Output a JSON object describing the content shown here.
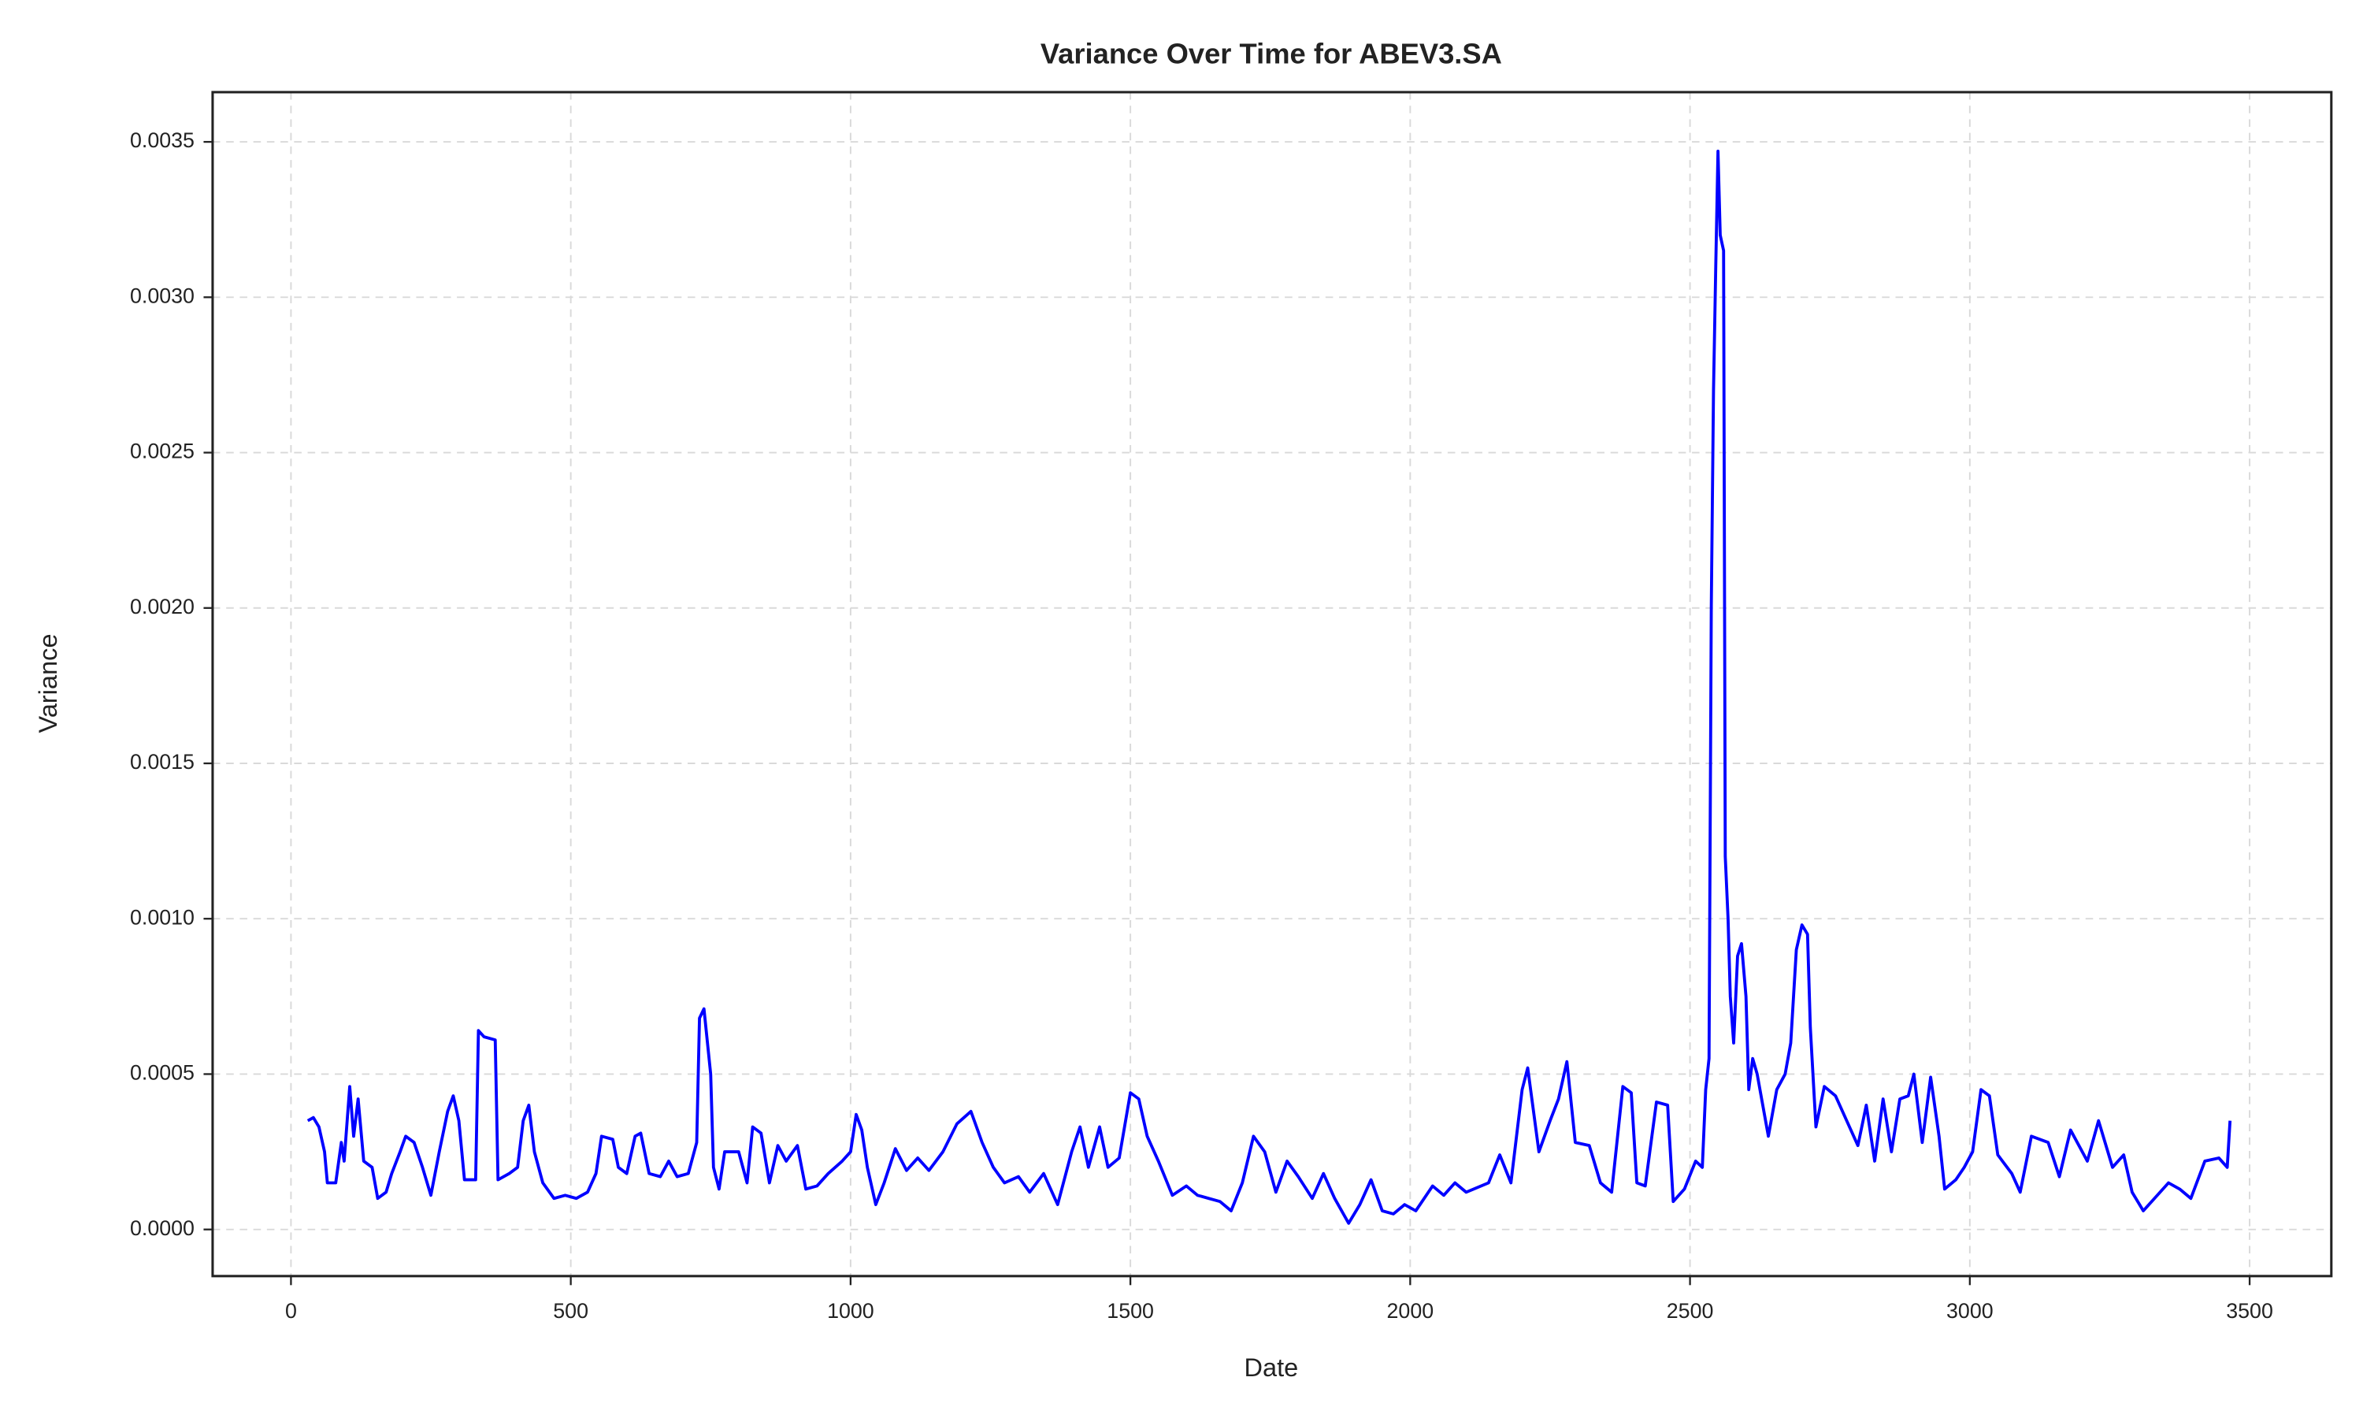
{
  "chart_data": {
    "type": "line",
    "title": "Variance Over Time for ABEV3.SA",
    "x_label": "Date",
    "y_label": "Variance",
    "xlim": [
      -140,
      3646
    ],
    "ylim": [
      -0.00015,
      0.00366
    ],
    "xticks": [
      0,
      500,
      1000,
      1500,
      2000,
      2500,
      3000,
      3500
    ],
    "yticks": [
      {
        "value": 0,
        "label": "0.0000"
      },
      0.0005,
      {
        "value": 0.001,
        "label": "0.0010"
      },
      0.0015,
      {
        "value": 0.002,
        "label": "0.0020"
      },
      0.0025,
      {
        "value": 0.003,
        "label": "0.0030"
      },
      0.0035
    ],
    "grid": true,
    "series": [
      {
        "color": "#0000ff",
        "x": [
          30,
          40,
          50,
          60,
          65,
          80,
          90,
          95,
          105,
          112,
          120,
          130,
          145,
          155,
          170,
          180,
          195,
          205,
          220,
          235,
          250,
          265,
          280,
          290,
          300,
          310,
          330,
          335,
          345,
          365,
          370,
          390,
          405,
          415,
          425,
          435,
          450,
          470,
          490,
          510,
          530,
          545,
          555,
          575,
          585,
          600,
          615,
          625,
          640,
          660,
          675,
          690,
          710,
          725,
          730,
          738,
          750,
          755,
          765,
          775,
          800,
          815,
          825,
          840,
          855,
          870,
          885,
          905,
          920,
          940,
          960,
          985,
          1000,
          1010,
          1020,
          1030,
          1045,
          1060,
          1080,
          1100,
          1120,
          1140,
          1165,
          1190,
          1215,
          1235,
          1255,
          1275,
          1300,
          1320,
          1345,
          1370,
          1395,
          1410,
          1425,
          1445,
          1460,
          1480,
          1500,
          1515,
          1530,
          1550,
          1575,
          1600,
          1620,
          1640,
          1660,
          1680,
          1700,
          1720,
          1740,
          1760,
          1780,
          1800,
          1825,
          1845,
          1865,
          1890,
          1910,
          1930,
          1950,
          1970,
          1990,
          2010,
          2040,
          2060,
          2080,
          2100,
          2140,
          2160,
          2180,
          2200,
          2210,
          2230,
          2250,
          2265,
          2280,
          2295,
          2320,
          2340,
          2360,
          2380,
          2395,
          2405,
          2420,
          2440,
          2460,
          2470,
          2490,
          2510,
          2522,
          2528,
          2534,
          2538,
          2542,
          2546,
          2550,
          2554,
          2560,
          2563,
          2568,
          2572,
          2578,
          2585,
          2592,
          2600,
          2605,
          2612,
          2620,
          2630,
          2640,
          2655,
          2670,
          2680,
          2690,
          2700,
          2710,
          2715,
          2725,
          2740,
          2760,
          2780,
          2800,
          2815,
          2830,
          2845,
          2860,
          2875,
          2890,
          2900,
          2915,
          2930,
          2945,
          2955,
          2975,
          2990,
          3005,
          3020,
          3035,
          3050,
          3075,
          3090,
          3110,
          3140,
          3160,
          3180,
          3195,
          3210,
          3230,
          3255,
          3275,
          3290,
          3310,
          3330,
          3355,
          3375,
          3395,
          3420,
          3445,
          3460,
          3465
        ],
        "values": [
          0.00035,
          0.00036,
          0.00033,
          0.00025,
          0.00015,
          0.00015,
          0.00028,
          0.00022,
          0.00046,
          0.0003,
          0.00042,
          0.00022,
          0.0002,
          0.0001,
          0.00012,
          0.00018,
          0.00025,
          0.0003,
          0.00028,
          0.0002,
          0.00011,
          0.00025,
          0.00038,
          0.00043,
          0.00035,
          0.00016,
          0.00016,
          0.00064,
          0.00062,
          0.00061,
          0.00016,
          0.00018,
          0.0002,
          0.00035,
          0.0004,
          0.00025,
          0.00015,
          0.0001,
          0.00011,
          0.0001,
          0.00012,
          0.00018,
          0.0003,
          0.00029,
          0.0002,
          0.00018,
          0.0003,
          0.00031,
          0.00018,
          0.00017,
          0.00022,
          0.00017,
          0.00018,
          0.00028,
          0.00068,
          0.00071,
          0.0005,
          0.0002,
          0.00013,
          0.00025,
          0.00025,
          0.00015,
          0.00033,
          0.00031,
          0.00015,
          0.00027,
          0.00022,
          0.00027,
          0.00013,
          0.00014,
          0.00018,
          0.00022,
          0.00025,
          0.00037,
          0.00032,
          0.0002,
          8e-05,
          0.00015,
          0.00026,
          0.00019,
          0.00023,
          0.00019,
          0.00025,
          0.00034,
          0.00038,
          0.00028,
          0.0002,
          0.00015,
          0.00017,
          0.00012,
          0.00018,
          8e-05,
          0.00025,
          0.00033,
          0.0002,
          0.00033,
          0.0002,
          0.00023,
          0.00044,
          0.00042,
          0.0003,
          0.00022,
          0.00011,
          0.00014,
          0.00011,
          0.0001,
          9e-05,
          6e-05,
          0.00015,
          0.0003,
          0.00025,
          0.00012,
          0.00022,
          0.00017,
          0.0001,
          0.00018,
          0.0001,
          2e-05,
          8e-05,
          0.00016,
          6e-05,
          5e-05,
          8e-05,
          6e-05,
          0.00014,
          0.00011,
          0.00015,
          0.00012,
          0.00015,
          0.00024,
          0.00015,
          0.00045,
          0.00052,
          0.00025,
          0.00035,
          0.00042,
          0.00054,
          0.00028,
          0.00027,
          0.00015,
          0.00012,
          0.00046,
          0.00044,
          0.00015,
          0.00014,
          0.00041,
          0.0004,
          9e-05,
          0.00013,
          0.00022,
          0.0002,
          0.00045,
          0.00055,
          0.002,
          0.0027,
          0.0031,
          0.00347,
          0.0032,
          0.00315,
          0.0012,
          0.001,
          0.00075,
          0.0006,
          0.00088,
          0.00092,
          0.00075,
          0.00045,
          0.00055,
          0.0005,
          0.0004,
          0.0003,
          0.00045,
          0.0005,
          0.0006,
          0.0009,
          0.00098,
          0.00095,
          0.00065,
          0.00033,
          0.00046,
          0.00043,
          0.00035,
          0.00027,
          0.0004,
          0.00022,
          0.00042,
          0.00025,
          0.00042,
          0.00043,
          0.0005,
          0.00028,
          0.00049,
          0.0003,
          0.00013,
          0.00016,
          0.0002,
          0.00025,
          0.00045,
          0.00043,
          0.00024,
          0.00018,
          0.00012,
          0.0003,
          0.00028,
          0.00017,
          0.00032,
          0.00027,
          0.00022,
          0.00035,
          0.0002,
          0.00024,
          0.00012,
          6e-05,
          0.0001,
          0.00015,
          0.00013,
          0.0001,
          0.00022,
          0.00023,
          0.0002,
          0.00035
        ]
      }
    ]
  }
}
